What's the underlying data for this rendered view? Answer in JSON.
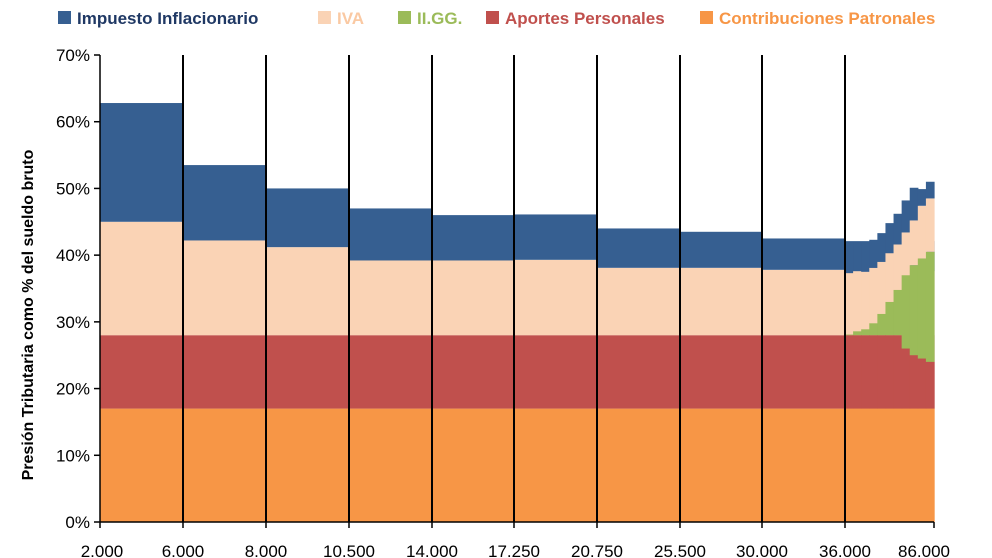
{
  "chart_data": {
    "type": "area",
    "stacked": true,
    "title": "",
    "ylabel": "Presión Tributaria  como % del sueldo bruto",
    "xlabel": "",
    "ylim": [
      0,
      70
    ],
    "yticks": [
      0,
      10,
      20,
      30,
      40,
      50,
      60,
      70
    ],
    "ytick_labels": [
      "0%",
      "10%",
      "20%",
      "30%",
      "40%",
      "50%",
      "60%",
      "70%"
    ],
    "xtick_labels": [
      "2.000",
      "6.000",
      "8.000",
      "10.500",
      "14.000",
      "17.250",
      "20.750",
      "25.500",
      "30.000",
      "36.000",
      "86.000"
    ],
    "legend_position": "top",
    "series": [
      {
        "name": "Contribuciones Patronales",
        "color": "#F79646"
      },
      {
        "name": "Aportes Personales",
        "color": "#C0504D"
      },
      {
        "name": "II.GG.",
        "color": "#9BBB59"
      },
      {
        "name": "IVA",
        "color": "#FAD3B5"
      },
      {
        "name": "Impuesto Inflacionario",
        "color": "#365F91"
      }
    ],
    "legend_order": [
      "Impuesto Inflacionario",
      "IVA",
      "II.GG.",
      "Aportes Personales",
      "Contribuciones Patronales"
    ],
    "segments_main": [
      {
        "cp": 17,
        "ap": 11,
        "ig": 0,
        "iva": 17.0,
        "inf": 17.8
      },
      {
        "cp": 17,
        "ap": 11,
        "ig": 0,
        "iva": 14.2,
        "inf": 11.3
      },
      {
        "cp": 17,
        "ap": 11,
        "ig": 0,
        "iva": 13.2,
        "inf": 8.8
      },
      {
        "cp": 17,
        "ap": 11,
        "ig": 0,
        "iva": 11.2,
        "inf": 7.8
      },
      {
        "cp": 17,
        "ap": 11,
        "ig": 0,
        "iva": 11.2,
        "inf": 6.8
      },
      {
        "cp": 17,
        "ap": 11,
        "ig": 0,
        "iva": 11.3,
        "inf": 6.8
      },
      {
        "cp": 17,
        "ap": 11,
        "ig": 0,
        "iva": 10.1,
        "inf": 5.9
      },
      {
        "cp": 17,
        "ap": 11,
        "ig": 0,
        "iva": 10.1,
        "inf": 5.4
      },
      {
        "cp": 17,
        "ap": 11,
        "ig": 0,
        "iva": 9.8,
        "inf": 4.7
      },
      {
        "cp": 17,
        "ap": 11,
        "ig": 0,
        "iva": 9.6,
        "inf": 4.5
      }
    ],
    "segment_last_steps": [
      {
        "cp": 17,
        "ap": 11,
        "ig": 0.1,
        "iva": 9.2,
        "inf": 4.6
      },
      {
        "cp": 17,
        "ap": 11,
        "ig": 0.6,
        "iva": 9.0,
        "inf": 4.3
      },
      {
        "cp": 17,
        "ap": 11,
        "ig": 0.9,
        "iva": 8.6,
        "inf": 4.2
      },
      {
        "cp": 17,
        "ap": 11,
        "ig": 1.8,
        "iva": 8.3,
        "inf": 4.2
      },
      {
        "cp": 17,
        "ap": 11,
        "ig": 3.2,
        "iva": 7.8,
        "inf": 4.3
      },
      {
        "cp": 17,
        "ap": 11,
        "ig": 5.0,
        "iva": 7.3,
        "inf": 4.5
      },
      {
        "cp": 17,
        "ap": 11,
        "ig": 6.8,
        "iva": 6.8,
        "inf": 4.6
      },
      {
        "cp": 17,
        "ap": 9.0,
        "ig": 11.0,
        "iva": 6.4,
        "inf": 4.8
      },
      {
        "cp": 17,
        "ap": 8.0,
        "ig": 13.5,
        "iva": 6.7,
        "inf": 4.9
      },
      {
        "cp": 17,
        "ap": 7.5,
        "ig": 15.0,
        "iva": 7.9,
        "inf": 2.5
      },
      {
        "cp": 17,
        "ap": 7.0,
        "ig": 16.5,
        "iva": 8.0,
        "inf": 2.5
      }
    ]
  }
}
